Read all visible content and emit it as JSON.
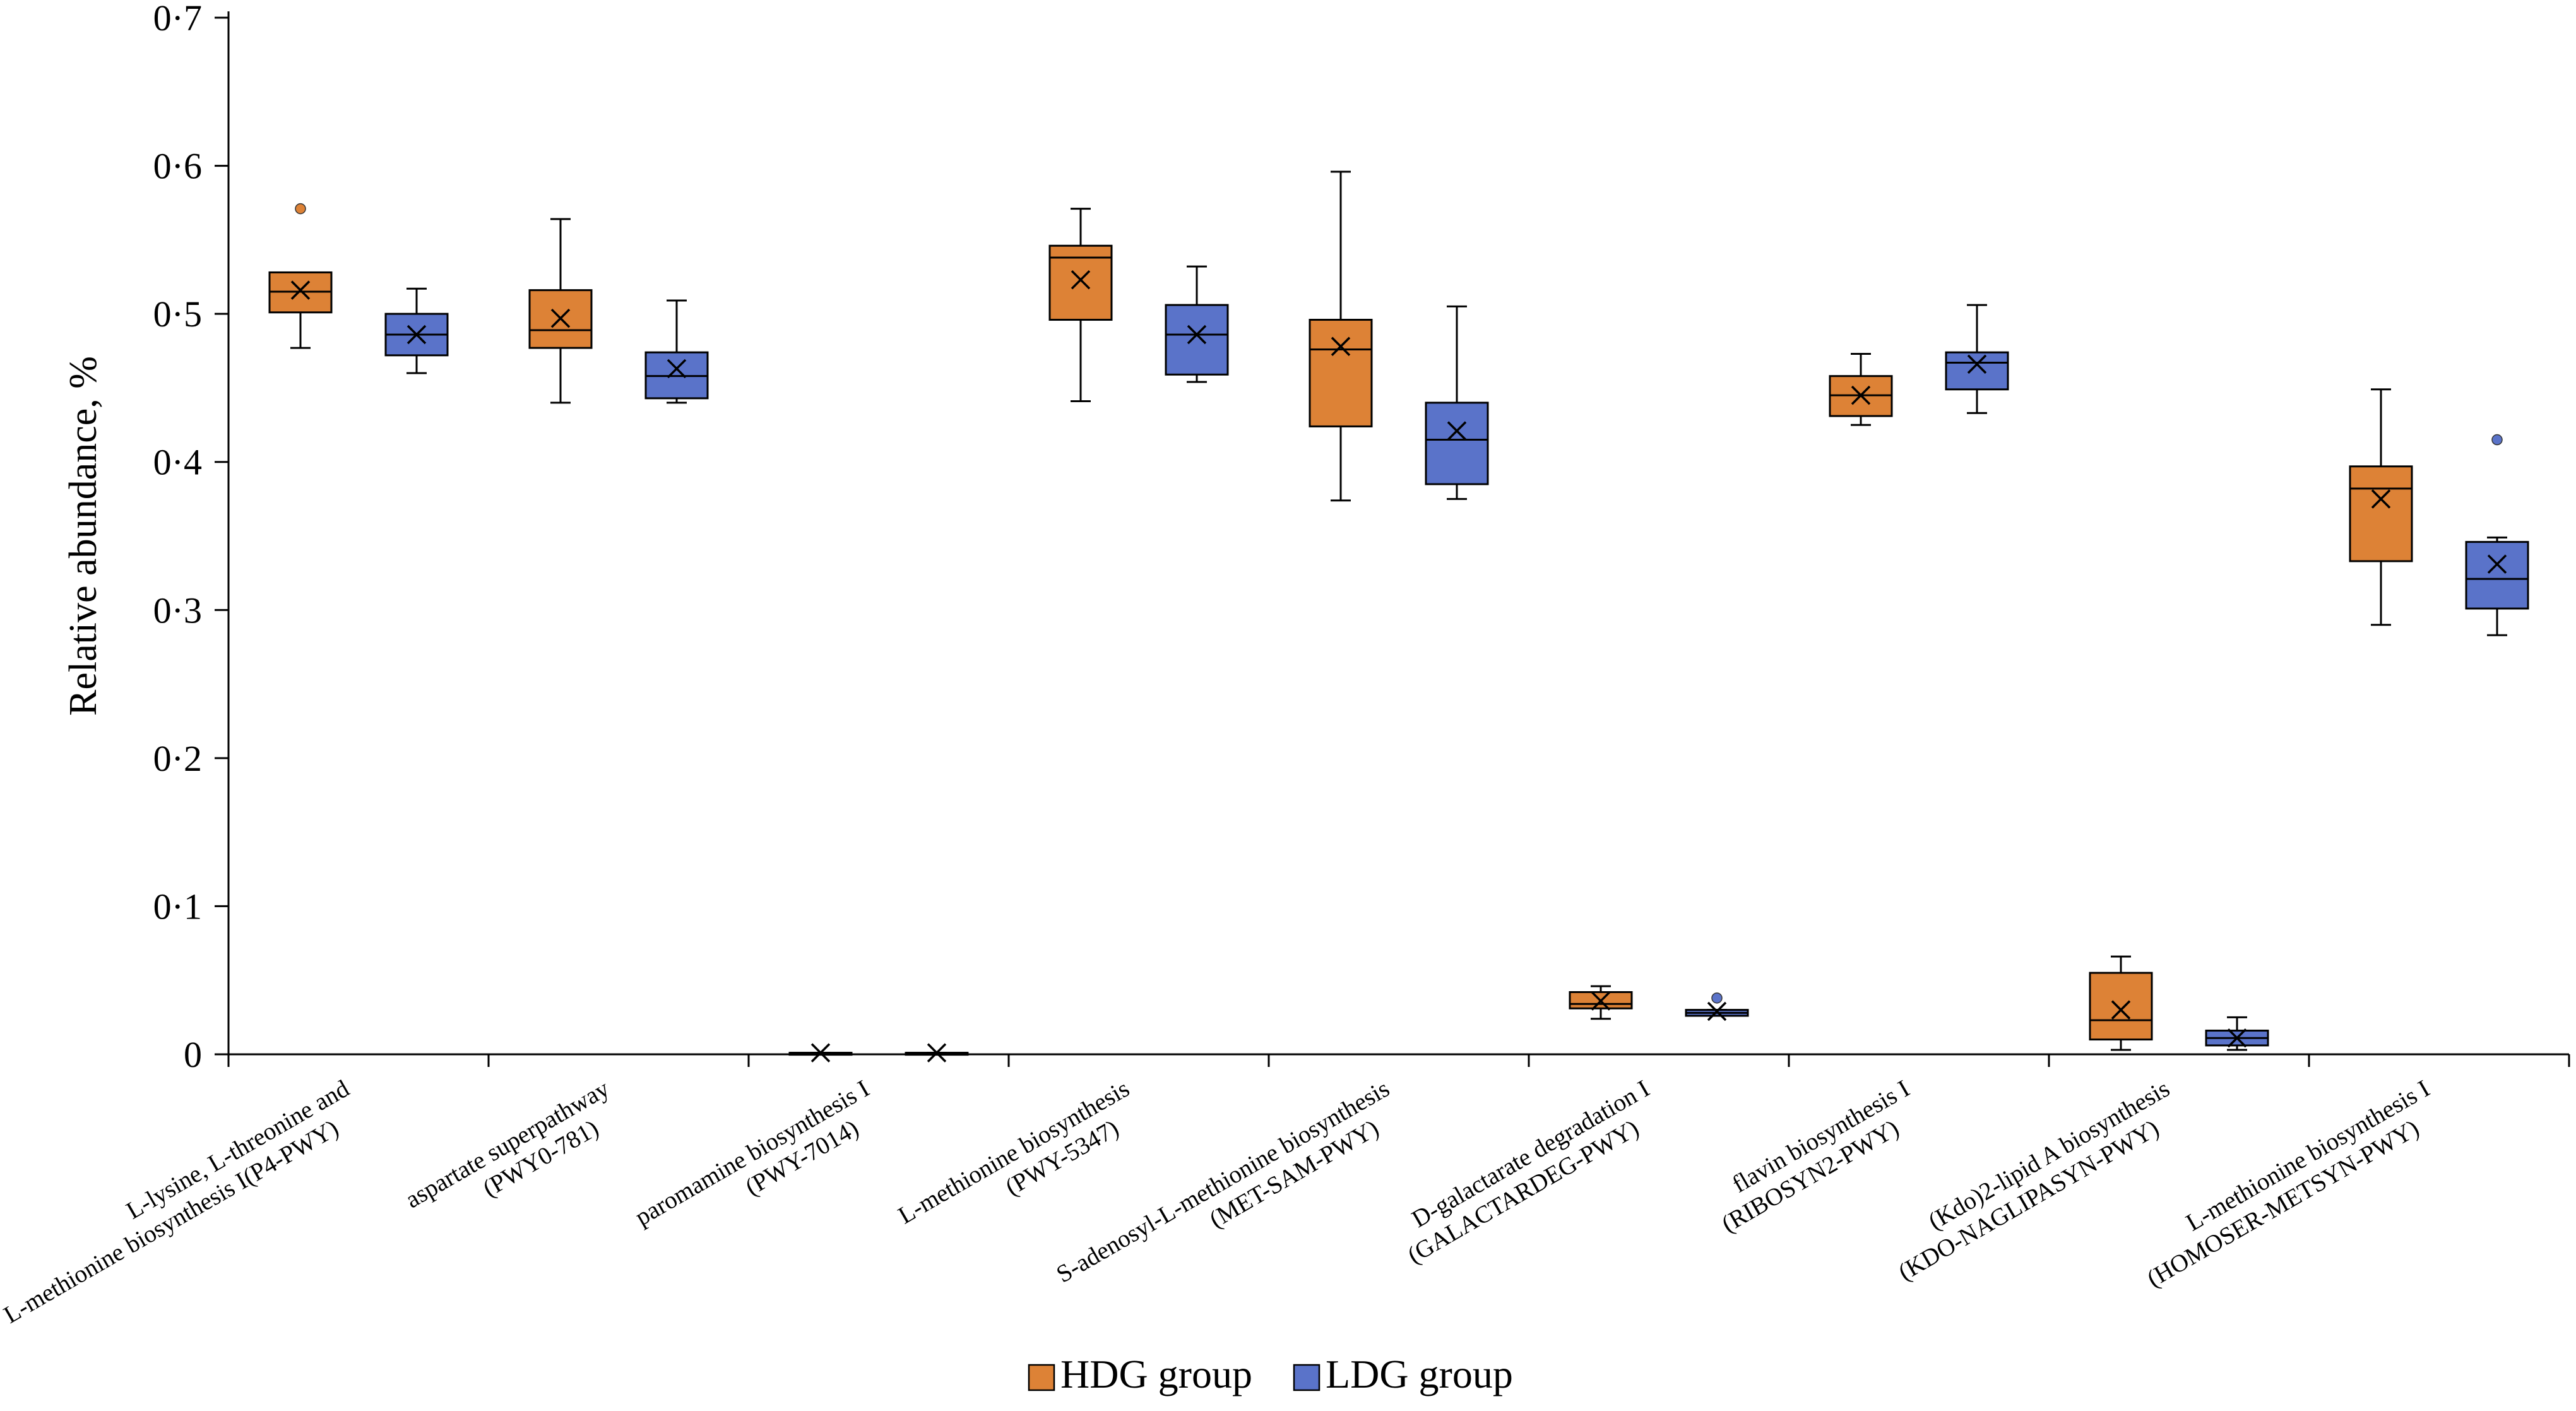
{
  "chart_data": {
    "type": "boxplot",
    "title": "",
    "xlabel": "",
    "ylabel": "Relative abundance, %",
    "ylim": [
      0,
      0.7
    ],
    "yticks": [
      {
        "value": 0,
        "label": "0"
      },
      {
        "value": 0.1,
        "label": "0·1"
      },
      {
        "value": 0.2,
        "label": "0·2"
      },
      {
        "value": 0.3,
        "label": "0·3"
      },
      {
        "value": 0.4,
        "label": "0·4"
      },
      {
        "value": 0.5,
        "label": "0·5"
      },
      {
        "value": 0.6,
        "label": "0·6"
      },
      {
        "value": 0.7,
        "label": "0·7"
      }
    ],
    "categories": [
      {
        "lines": [
          "L-lysine, L-threonine and",
          "L-methionine biosynthesis I(P4-PWY)"
        ]
      },
      {
        "lines": [
          "aspartate superpathway",
          "(PWY0-781)"
        ]
      },
      {
        "lines": [
          "paromamine biosynthesis I",
          "(PWY-7014)"
        ]
      },
      {
        "lines": [
          "L-methionine biosynthesis",
          "(PWY-5347)"
        ]
      },
      {
        "lines": [
          "S-adenosyl-L-methionine biosynthesis",
          "(MET-SAM-PWY)"
        ]
      },
      {
        "lines": [
          "D-galactarate degradation I",
          "(GALACTARDEG-PWY)"
        ]
      },
      {
        "lines": [
          "flavin biosynthesis I",
          "(RIBOSYN2-PWY)"
        ]
      },
      {
        "lines": [
          "(Kdo)2-lipid A biosynthesis",
          "(KDO-NAGLIPASYN-PWY)"
        ]
      },
      {
        "lines": [
          "L-methionine biosynthesis I",
          "(HOMOSER-METSYN-PWY)"
        ]
      }
    ],
    "series": [
      {
        "name": "HDG group",
        "color": "#DD8236",
        "boxes": [
          {
            "min": 0.477,
            "q1": 0.501,
            "median": 0.515,
            "q3": 0.528,
            "max": 0.528,
            "mean": 0.516,
            "outliers": [
              0.571
            ]
          },
          {
            "min": 0.44,
            "q1": 0.477,
            "median": 0.489,
            "q3": 0.516,
            "max": 0.564,
            "mean": 0.497,
            "outliers": []
          },
          {
            "min": 0.001,
            "q1": 0.001,
            "median": 0.001,
            "q3": 0.001,
            "max": 0.001,
            "mean": 0.001,
            "outliers": []
          },
          {
            "min": 0.441,
            "q1": 0.496,
            "median": 0.538,
            "q3": 0.546,
            "max": 0.571,
            "mean": 0.523,
            "outliers": []
          },
          {
            "min": 0.374,
            "q1": 0.424,
            "median": 0.476,
            "q3": 0.496,
            "max": 0.596,
            "mean": 0.478,
            "outliers": []
          },
          {
            "min": 0.024,
            "q1": 0.031,
            "median": 0.034,
            "q3": 0.042,
            "max": 0.046,
            "mean": 0.036,
            "outliers": []
          },
          {
            "min": 0.425,
            "q1": 0.431,
            "median": 0.445,
            "q3": 0.458,
            "max": 0.473,
            "mean": 0.445,
            "outliers": []
          },
          {
            "min": 0.003,
            "q1": 0.01,
            "median": 0.023,
            "q3": 0.055,
            "max": 0.066,
            "mean": 0.03,
            "outliers": []
          },
          {
            "min": 0.29,
            "q1": 0.333,
            "median": 0.382,
            "q3": 0.397,
            "max": 0.449,
            "mean": 0.375,
            "outliers": []
          }
        ]
      },
      {
        "name": "LDG group",
        "color": "#5A73C9",
        "boxes": [
          {
            "min": 0.46,
            "q1": 0.472,
            "median": 0.486,
            "q3": 0.5,
            "max": 0.517,
            "mean": 0.486,
            "outliers": []
          },
          {
            "min": 0.44,
            "q1": 0.443,
            "median": 0.458,
            "q3": 0.474,
            "max": 0.509,
            "mean": 0.463,
            "outliers": []
          },
          {
            "min": 0.001,
            "q1": 0.001,
            "median": 0.001,
            "q3": 0.001,
            "max": 0.001,
            "mean": 0.001,
            "outliers": []
          },
          {
            "min": 0.454,
            "q1": 0.459,
            "median": 0.486,
            "q3": 0.506,
            "max": 0.532,
            "mean": 0.486,
            "outliers": []
          },
          {
            "min": 0.375,
            "q1": 0.385,
            "median": 0.415,
            "q3": 0.44,
            "max": 0.505,
            "mean": 0.421,
            "outliers": []
          },
          {
            "min": 0.026,
            "q1": 0.026,
            "median": 0.028,
            "q3": 0.03,
            "max": 0.03,
            "mean": 0.029,
            "outliers": [
              0.038
            ]
          },
          {
            "min": 0.433,
            "q1": 0.449,
            "median": 0.467,
            "q3": 0.474,
            "max": 0.506,
            "mean": 0.466,
            "outliers": []
          },
          {
            "min": 0.003,
            "q1": 0.006,
            "median": 0.011,
            "q3": 0.016,
            "max": 0.025,
            "mean": 0.011,
            "outliers": []
          },
          {
            "min": 0.283,
            "q1": 0.301,
            "median": 0.321,
            "q3": 0.346,
            "max": 0.349,
            "mean": 0.331,
            "outliers": [
              0.415
            ]
          }
        ]
      }
    ],
    "legend": {
      "position": "bottom-center"
    },
    "grid": false
  }
}
